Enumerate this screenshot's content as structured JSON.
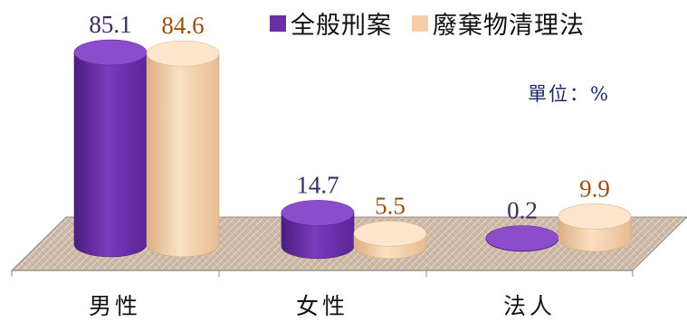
{
  "chart_data": {
    "type": "bar",
    "categories": [
      "男性",
      "女性",
      "法人"
    ],
    "series": [
      {
        "name": "全般刑案",
        "values": [
          85.1,
          14.7,
          0.2
        ],
        "color": "#6b2fa3",
        "label_color": "#3d2a63"
      },
      {
        "name": "廢棄物清理法",
        "values": [
          84.6,
          5.5,
          9.9
        ],
        "color": "#f4cfa9",
        "label_color": "#9a5010"
      }
    ],
    "unit_label": "單位：%",
    "value_labels": [
      [
        "85.1",
        "14.7",
        "0.2"
      ],
      [
        "84.6",
        "5.5",
        "9.9"
      ]
    ],
    "floor_color": "#cdb9a8",
    "grid": false,
    "legend_position": "top"
  }
}
